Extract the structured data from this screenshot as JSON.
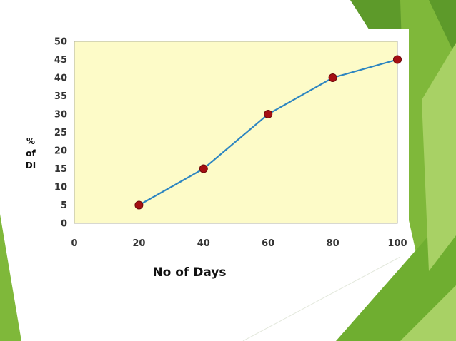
{
  "chart_data": {
    "type": "line",
    "x": [
      20,
      40,
      60,
      80,
      100
    ],
    "y": [
      5,
      15,
      30,
      40,
      45
    ],
    "xticks": [
      0,
      20,
      40,
      60,
      80,
      100
    ],
    "yticks": [
      0,
      5,
      10,
      15,
      20,
      25,
      30,
      35,
      40,
      45,
      50
    ],
    "xlim": [
      0,
      100
    ],
    "ylim": [
      0,
      50
    ],
    "xlabel": "No of Days",
    "ylabel_lines": [
      "%",
      "of",
      "DI"
    ],
    "grid": false,
    "legend": "none",
    "colors": {
      "plot_bg": "#fdfbc8",
      "line": "#2e86c1",
      "marker": "#a50e12",
      "marker_edge": "#6e0a0c",
      "axis": "#999999"
    }
  },
  "theme": {
    "green_dark": "#5d9a2a",
    "green_mid": "#7fb83a",
    "green_light": "#a8d165",
    "green_pale": "#cfe6a8"
  }
}
